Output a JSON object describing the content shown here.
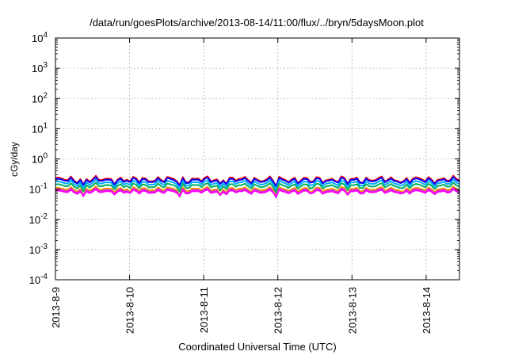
{
  "chart_data": {
    "type": "line",
    "title": "/data/run/goesPlots/archive/2013-08-14/11:00/flux/../bryn/5daysMoon.plot",
    "xlabel": "Coordinated Universal Time (UTC)",
    "ylabel": "cGy/day",
    "x_tick_labels": [
      "2013-8-9",
      "2013-8-10",
      "2013-8-11",
      "2013-8-12",
      "2013-8-13",
      "2013-8-14"
    ],
    "x_ticks_days": [
      0,
      1,
      2,
      3,
      4,
      5
    ],
    "xlim_days": [
      0,
      5.45
    ],
    "ylim": [
      0.0001,
      10000
    ],
    "yscale": "log",
    "y_ticks": [
      {
        "base": "10",
        "exp": "4",
        "value": 10000
      },
      {
        "base": "10",
        "exp": "3",
        "value": 1000
      },
      {
        "base": "10",
        "exp": "2",
        "value": 100
      },
      {
        "base": "10",
        "exp": "1",
        "value": 10
      },
      {
        "base": "10",
        "exp": "0",
        "value": 1
      },
      {
        "base": "10",
        "exp": "-1",
        "value": 0.1
      },
      {
        "base": "10",
        "exp": "-2",
        "value": 0.01
      },
      {
        "base": "10",
        "exp": "-3",
        "value": 0.001
      },
      {
        "base": "10",
        "exp": "-4",
        "value": 0.0001
      }
    ],
    "grid": true,
    "legend": "none",
    "n_points": 131,
    "series": [
      {
        "color": "#ff0000",
        "base": 0.21,
        "amp": 0.06,
        "dip_scale": 0.55
      },
      {
        "color": "#0000ff",
        "base": 0.195,
        "amp": 0.05,
        "dip_scale": 0.5
      },
      {
        "color": "#00aaff",
        "base": 0.16,
        "amp": 0.04,
        "dip_scale": 0.55
      },
      {
        "color": "#00b060",
        "base": 0.13,
        "amp": 0.03,
        "dip_scale": 0.6
      },
      {
        "color": "#ff9900",
        "base": 0.1,
        "amp": 0.02,
        "dip_scale": 0.65
      },
      {
        "color": "#cc33cc",
        "base": 0.09,
        "amp": 0.018,
        "dip_scale": 0.6
      },
      {
        "color": "#ff00ff",
        "base": 0.082,
        "amp": 0.015,
        "dip_scale": 0.4
      }
    ],
    "dips_days": [
      {
        "x": 0.38,
        "factor": 0.4
      },
      {
        "x": 1.02,
        "factor": 0.7
      },
      {
        "x": 1.67,
        "factor": 0.4
      },
      {
        "x": 2.22,
        "factor": 0.45
      },
      {
        "x": 2.98,
        "factor": 0.35
      },
      {
        "x": 3.45,
        "factor": 0.6
      },
      {
        "x": 3.95,
        "factor": 0.6
      },
      {
        "x": 4.68,
        "factor": 0.65
      }
    ]
  }
}
